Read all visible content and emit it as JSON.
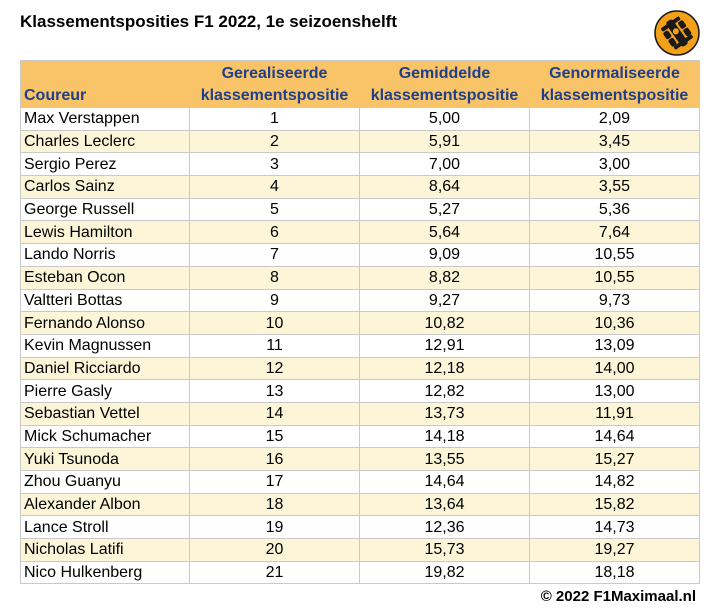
{
  "title": "Klassementsposities F1 2022, 1e seizoenshelft",
  "logo": {
    "icon": "race-car-wheel-icon",
    "color": "#f4a11a"
  },
  "columns": {
    "driver": "Coureur",
    "realised_1": "Gerealiseerde",
    "realised_2": "klassementspositie",
    "average_1": "Gemiddelde",
    "average_2": "klassementspositie",
    "normalised_1": "Genormaliseerde",
    "normalised_2": "klassementspositie"
  },
  "rows": [
    {
      "driver": "Max Verstappen",
      "realised": "1",
      "average": "5,00",
      "normalised": "2,09"
    },
    {
      "driver": "Charles Leclerc",
      "realised": "2",
      "average": "5,91",
      "normalised": "3,45"
    },
    {
      "driver": "Sergio Perez",
      "realised": "3",
      "average": "7,00",
      "normalised": "3,00"
    },
    {
      "driver": "Carlos Sainz",
      "realised": "4",
      "average": "8,64",
      "normalised": "3,55"
    },
    {
      "driver": "George Russell",
      "realised": "5",
      "average": "5,27",
      "normalised": "5,36"
    },
    {
      "driver": "Lewis Hamilton",
      "realised": "6",
      "average": "5,64",
      "normalised": "7,64"
    },
    {
      "driver": "Lando Norris",
      "realised": "7",
      "average": "9,09",
      "normalised": "10,55"
    },
    {
      "driver": "Esteban Ocon",
      "realised": "8",
      "average": "8,82",
      "normalised": "10,55"
    },
    {
      "driver": "Valtteri Bottas",
      "realised": "9",
      "average": "9,27",
      "normalised": "9,73"
    },
    {
      "driver": "Fernando Alonso",
      "realised": "10",
      "average": "10,82",
      "normalised": "10,36"
    },
    {
      "driver": "Kevin Magnussen",
      "realised": "11",
      "average": "12,91",
      "normalised": "13,09"
    },
    {
      "driver": "Daniel Ricciardo",
      "realised": "12",
      "average": "12,18",
      "normalised": "14,00"
    },
    {
      "driver": "Pierre Gasly",
      "realised": "13",
      "average": "12,82",
      "normalised": "13,00"
    },
    {
      "driver": "Sebastian Vettel",
      "realised": "14",
      "average": "13,73",
      "normalised": "11,91"
    },
    {
      "driver": "Mick Schumacher",
      "realised": "15",
      "average": "14,18",
      "normalised": "14,64"
    },
    {
      "driver": "Yuki Tsunoda",
      "realised": "16",
      "average": "13,55",
      "normalised": "15,27"
    },
    {
      "driver": "Zhou Guanyu",
      "realised": "17",
      "average": "14,64",
      "normalised": "14,82"
    },
    {
      "driver": "Alexander Albon",
      "realised": "18",
      "average": "13,64",
      "normalised": "15,82"
    },
    {
      "driver": "Lance Stroll",
      "realised": "19",
      "average": "12,36",
      "normalised": "14,73"
    },
    {
      "driver": "Nicholas Latifi",
      "realised": "20",
      "average": "15,73",
      "normalised": "19,27"
    },
    {
      "driver": "Nico Hulkenberg",
      "realised": "21",
      "average": "19,82",
      "normalised": "18,18"
    }
  ],
  "colors": {
    "header_bg": "#f9c468",
    "header_text": "#1f3f8a",
    "stripe_bg": "#fdf5d8",
    "border": "#c9c9c9"
  },
  "footer": "© 2022 F1Maximaal.nl"
}
